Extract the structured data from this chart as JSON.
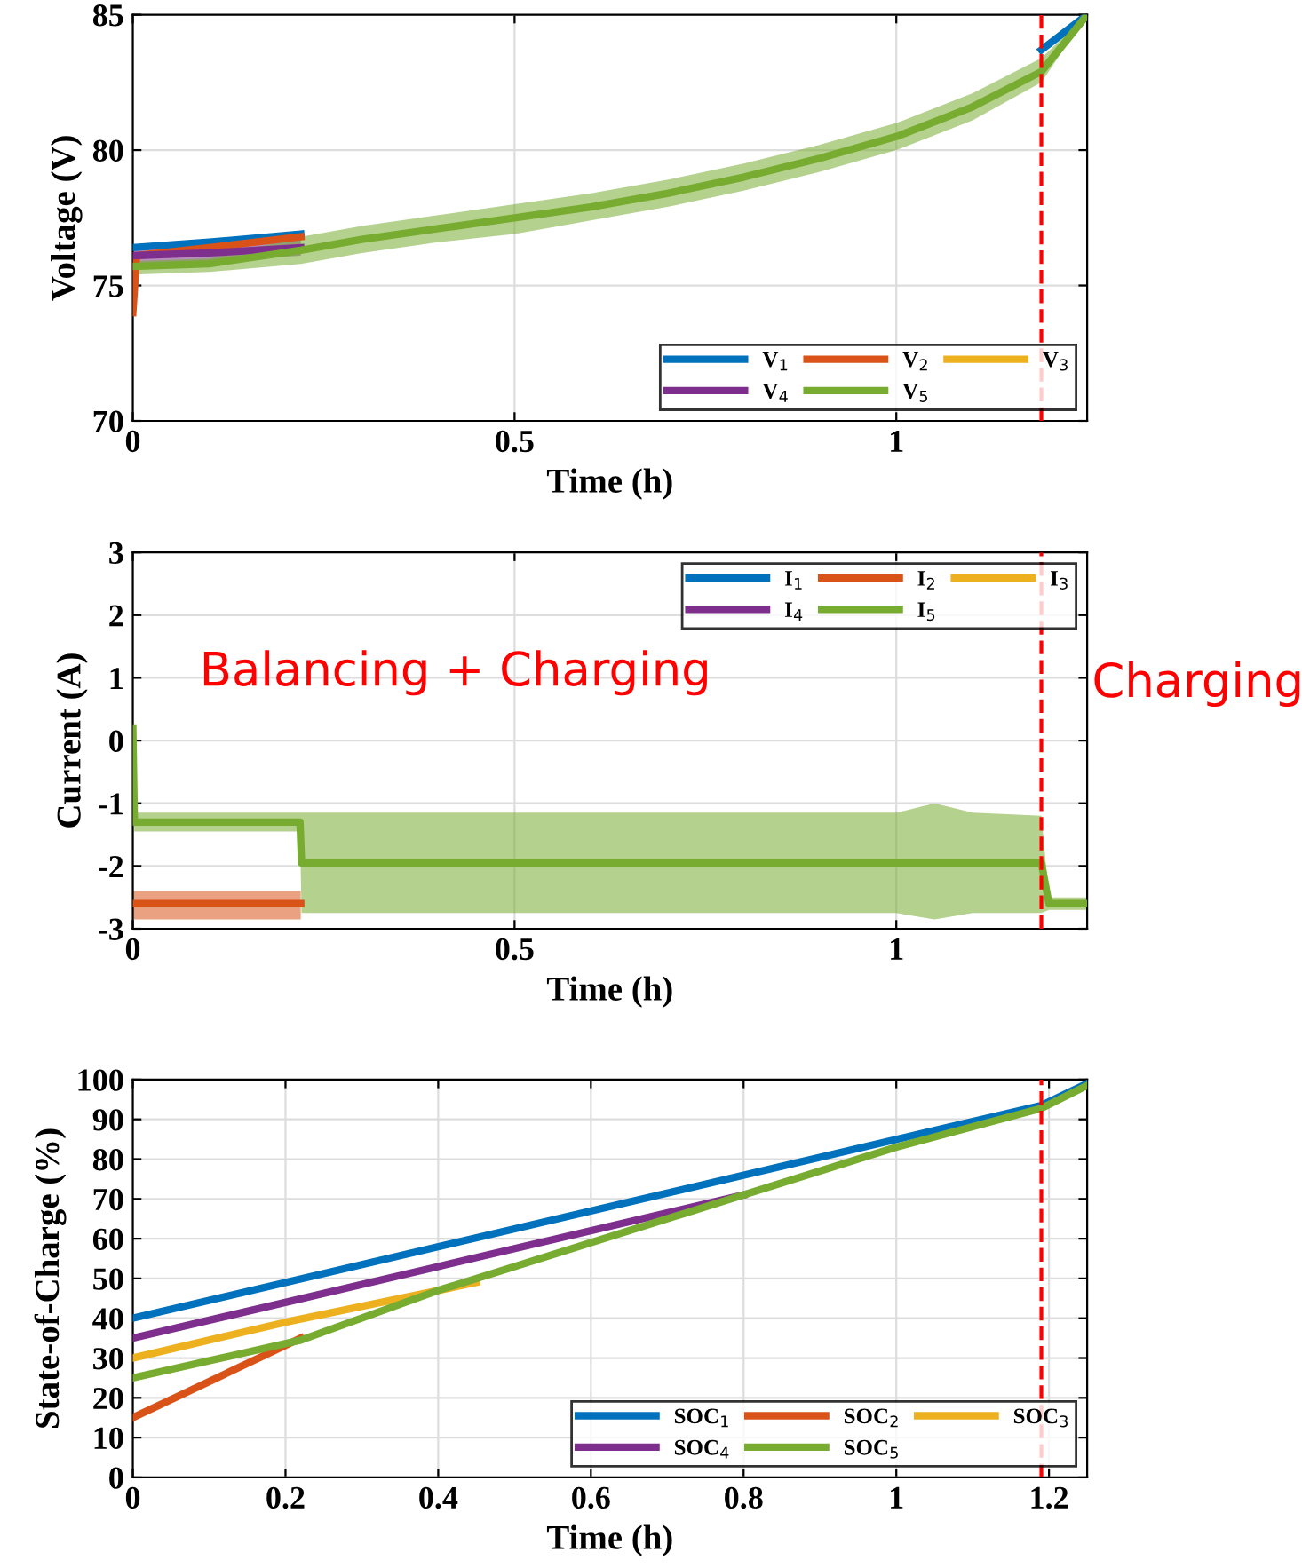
{
  "chart_data": [
    {
      "type": "line",
      "xlabel": "Time (h)",
      "ylabel": "Voltage (V)",
      "xlim": [
        0,
        1.25
      ],
      "ylim": [
        70,
        85
      ],
      "xticks": [
        0,
        0.5,
        1
      ],
      "yticks": [
        70,
        75,
        80,
        85
      ],
      "grid": true,
      "legend": "bottom right",
      "line_style": "solid",
      "marker": "none",
      "series": [
        {
          "name": "V$_{1}$",
          "color": "#0072bd",
          "x": [
            0,
            0.1,
            0.22,
            0.7,
            1.19,
            1.25
          ],
          "values": [
            76.4,
            76.6,
            76.9,
            null,
            83.7,
            85
          ]
        },
        {
          "name": "V$_{2}$",
          "color": "#d95319",
          "x": [
            0,
            0.005,
            0.1,
            0.22
          ],
          "values": [
            74.0,
            76.1,
            76.4,
            76.8
          ]
        },
        {
          "name": "V$_{3}$",
          "color": "#edb120"
        },
        {
          "name": "V$_{4}$",
          "color": "#7e2f8e",
          "x": [
            0,
            0.1,
            0.22
          ],
          "values": [
            76.1,
            76.2,
            76.4
          ],
          "lower": [
            75.8,
            75.9,
            76.1
          ],
          "upper": [
            76.4,
            76.5,
            76.7
          ]
        },
        {
          "name": "V$_{5}$",
          "color": "#77ac30",
          "x": [
            0,
            0.1,
            0.22,
            0.3,
            0.4,
            0.5,
            0.6,
            0.7,
            0.8,
            0.9,
            1.0,
            1.1,
            1.19,
            1.25
          ],
          "values": [
            75.7,
            75.8,
            76.3,
            76.7,
            77.1,
            77.5,
            77.9,
            78.4,
            79.0,
            79.7,
            80.5,
            81.6,
            82.9,
            85
          ],
          "lower": [
            75.4,
            75.5,
            75.8,
            76.2,
            76.6,
            76.9,
            77.4,
            77.9,
            78.5,
            79.2,
            80.0,
            81.1,
            82.5,
            85
          ],
          "upper": [
            75.9,
            76.0,
            76.8,
            77.2,
            77.6,
            78.0,
            78.4,
            78.9,
            79.5,
            80.2,
            81.0,
            82.1,
            83.4,
            85
          ]
        }
      ],
      "ref_lines": [
        {
          "axis": "x",
          "value": 1.19,
          "color": "#ff0000",
          "line_style": "dashed"
        }
      ]
    },
    {
      "type": "line",
      "xlabel": "Time (h)",
      "ylabel": "Current (A)",
      "xlim": [
        0,
        1.25
      ],
      "ylim": [
        -3,
        3
      ],
      "xticks": [
        0,
        0.5,
        1
      ],
      "yticks": [
        -3,
        -2,
        -1,
        0,
        1,
        2,
        3
      ],
      "grid": true,
      "legend": "top right",
      "line_style": "solid",
      "marker": "none",
      "annotations": [
        "Balancing + Charging",
        "Charging"
      ],
      "series": [
        {
          "name": "I$_{1}$",
          "color": "#0072bd"
        },
        {
          "name": "I$_{2}$",
          "color": "#d95319",
          "x": [
            0,
            0.1,
            0.22
          ],
          "values": [
            -2.6,
            -2.6,
            -2.6
          ],
          "lower": [
            -2.85,
            -2.85,
            -2.85
          ],
          "upper": [
            -2.4,
            -2.4,
            -2.4
          ]
        },
        {
          "name": "I$_{3}$",
          "color": "#edb120"
        },
        {
          "name": "I$_{4}$",
          "color": "#7e2f8e"
        },
        {
          "name": "I$_{5}$",
          "color": "#77ac30",
          "x": [
            0,
            0.002,
            0.1,
            0.219,
            0.221,
            0.5,
            0.8,
            1.0,
            1.05,
            1.1,
            1.19,
            1.2,
            1.25
          ],
          "values": [
            0.2,
            -1.3,
            -1.3,
            -1.3,
            -1.95,
            -1.95,
            -1.95,
            -1.95,
            -1.95,
            -1.95,
            -1.95,
            -2.6,
            -2.6
          ],
          "lower": [
            0.2,
            -1.45,
            -1.45,
            -1.45,
            -2.75,
            -2.75,
            -2.75,
            -2.75,
            -2.85,
            -2.75,
            -2.75,
            -2.7,
            -2.7
          ],
          "upper": [
            0.2,
            -1.15,
            -1.15,
            -1.15,
            -1.15,
            -1.15,
            -1.15,
            -1.15,
            -1.0,
            -1.15,
            -1.2,
            -2.5,
            -2.5
          ]
        }
      ],
      "ref_lines": [
        {
          "axis": "x",
          "value": 1.19,
          "color": "#ff0000",
          "line_style": "dashed"
        }
      ]
    },
    {
      "type": "line",
      "xlabel": "Time (h)",
      "ylabel": "State-of-Charge (%)",
      "xlim": [
        0,
        1.25
      ],
      "ylim": [
        0,
        100
      ],
      "xticks": [
        0,
        0.2,
        0.4,
        0.6,
        0.8,
        1,
        1.2
      ],
      "yticks": [
        0,
        10,
        20,
        30,
        40,
        50,
        60,
        70,
        80,
        90,
        100
      ],
      "grid": true,
      "legend": "bottom right",
      "line_style": "solid",
      "marker": "none",
      "series": [
        {
          "name": "SOC$_{1}$",
          "color": "#0072bd",
          "x": [
            0,
            1.19,
            1.25
          ],
          "values": [
            40,
            93.5,
            99
          ]
        },
        {
          "name": "SOC$_{2}$",
          "color": "#d95319",
          "x": [
            0,
            0.22
          ],
          "values": [
            15,
            35
          ]
        },
        {
          "name": "SOC$_{3}$",
          "color": "#edb120",
          "x": [
            0,
            0.2,
            0.45
          ],
          "values": [
            30,
            39,
            49
          ]
        },
        {
          "name": "SOC$_{4}$",
          "color": "#7e2f8e",
          "x": [
            0,
            0.4,
            0.8
          ],
          "values": [
            35,
            53,
            71
          ]
        },
        {
          "name": "SOC$_{5}$",
          "color": "#77ac30",
          "x": [
            0,
            0.22,
            0.4,
            0.8,
            1.0,
            1.19,
            1.25
          ],
          "values": [
            25,
            34.5,
            47,
            71,
            83,
            92.8,
            98.5
          ]
        }
      ],
      "ref_lines": [
        {
          "axis": "x",
          "value": 1.19,
          "color": "#ff0000",
          "line_style": "dashed"
        }
      ]
    }
  ]
}
